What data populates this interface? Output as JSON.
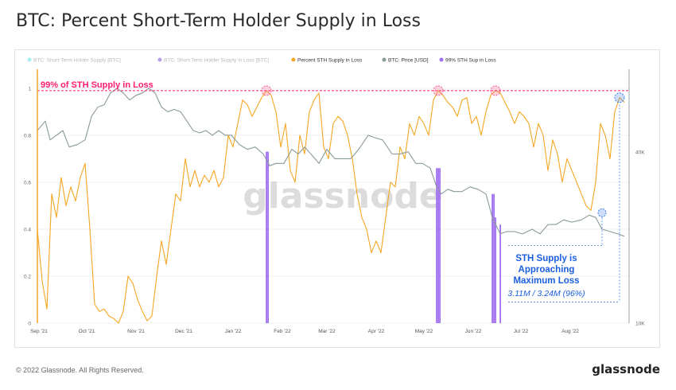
{
  "header": {
    "title": "BTC: Percent Short-Term Holder Supply in Loss"
  },
  "footer": {
    "copyright": "© 2022 Glassnode. All Rights Reserved.",
    "logo": "glassnode"
  },
  "watermark": "glassnode",
  "chart_data": {
    "type": "line",
    "legend": [
      {
        "name": "BTC: Short-Term Holder Supply [BTC]",
        "color": "#4dd9e8",
        "hidden": true
      },
      {
        "name": "BTC: Short-Term Holder Supply in Loss [BTC]",
        "color": "#6b3fd6",
        "hidden": true
      },
      {
        "name": "Percent STH Supply in Loss",
        "color": "#f5a623",
        "hidden": false
      },
      {
        "name": "BTC: Price [USD]",
        "color": "#8a9a9a",
        "hidden": false
      },
      {
        "name": "99% STH Sup in Loss",
        "color": "#a070f0",
        "hidden": false
      }
    ],
    "x_ticks": [
      "Sep '21",
      "Oct '21",
      "Nov '21",
      "Dec '21",
      "Jan '22",
      "Feb '22",
      "Mar '22",
      "Apr '22",
      "May '22",
      "Jun '22",
      "Jul '22",
      "Aug '22"
    ],
    "y_left_ticks": [
      "0",
      "0.2",
      "0.4",
      "0.6",
      "0.8",
      "1"
    ],
    "y_right_ticks": [
      "10K",
      "40K"
    ],
    "ylim_left": [
      0,
      1.02
    ],
    "xlim": [
      "2021-08-31",
      "2022-09-07"
    ],
    "threshold": {
      "value": 0.99,
      "label": "99% of STH Supply in Loss",
      "color": "#ff1c6e"
    },
    "annotation": {
      "lines": [
        "STH Supply is",
        "Approaching",
        "Maximum Loss"
      ],
      "sub": "3.11M / 3.24M (96%)",
      "color": "#1b5fe0"
    },
    "series": [
      {
        "name": "Percent STH Supply in Loss",
        "color": "#f5a623",
        "points": [
          [
            "2021-08-31",
            0.4
          ],
          [
            "2021-09-03",
            0.18
          ],
          [
            "2021-09-06",
            0.06
          ],
          [
            "2021-09-09",
            0.55
          ],
          [
            "2021-09-12",
            0.45
          ],
          [
            "2021-09-15",
            0.62
          ],
          [
            "2021-09-18",
            0.5
          ],
          [
            "2021-09-21",
            0.58
          ],
          [
            "2021-09-24",
            0.52
          ],
          [
            "2021-09-27",
            0.62
          ],
          [
            "2021-09-30",
            0.68
          ],
          [
            "2021-10-03",
            0.4
          ],
          [
            "2021-10-06",
            0.08
          ],
          [
            "2021-10-09",
            0.05
          ],
          [
            "2021-10-12",
            0.06
          ],
          [
            "2021-10-15",
            0.03
          ],
          [
            "2021-10-18",
            0.02
          ],
          [
            "2021-10-21",
            0.0
          ],
          [
            "2021-10-24",
            0.05
          ],
          [
            "2021-10-27",
            0.2
          ],
          [
            "2021-10-30",
            0.17
          ],
          [
            "2021-11-02",
            0.1
          ],
          [
            "2021-11-05",
            0.05
          ],
          [
            "2021-11-08",
            0.01
          ],
          [
            "2021-11-11",
            0.03
          ],
          [
            "2021-11-14",
            0.2
          ],
          [
            "2021-11-17",
            0.35
          ],
          [
            "2021-11-20",
            0.25
          ],
          [
            "2021-11-23",
            0.4
          ],
          [
            "2021-11-26",
            0.55
          ],
          [
            "2021-11-29",
            0.52
          ],
          [
            "2021-12-02",
            0.7
          ],
          [
            "2021-12-05",
            0.58
          ],
          [
            "2021-12-08",
            0.65
          ],
          [
            "2021-12-11",
            0.58
          ],
          [
            "2021-12-14",
            0.63
          ],
          [
            "2021-12-17",
            0.6
          ],
          [
            "2021-12-20",
            0.65
          ],
          [
            "2021-12-23",
            0.58
          ],
          [
            "2021-12-26",
            0.62
          ],
          [
            "2021-12-29",
            0.8
          ],
          [
            "2022-01-01",
            0.75
          ],
          [
            "2022-01-04",
            0.85
          ],
          [
            "2022-01-07",
            0.95
          ],
          [
            "2022-01-10",
            0.93
          ],
          [
            "2022-01-13",
            0.88
          ],
          [
            "2022-01-16",
            0.92
          ],
          [
            "2022-01-19",
            0.96
          ],
          [
            "2022-01-22",
            0.99
          ],
          [
            "2022-01-25",
            0.97
          ],
          [
            "2022-01-28",
            0.9
          ],
          [
            "2022-01-31",
            0.75
          ],
          [
            "2022-02-03",
            0.85
          ],
          [
            "2022-02-06",
            0.65
          ],
          [
            "2022-02-09",
            0.6
          ],
          [
            "2022-02-12",
            0.8
          ],
          [
            "2022-02-15",
            0.72
          ],
          [
            "2022-02-18",
            0.9
          ],
          [
            "2022-02-21",
            0.95
          ],
          [
            "2022-02-24",
            0.98
          ],
          [
            "2022-02-27",
            0.75
          ],
          [
            "2022-03-02",
            0.7
          ],
          [
            "2022-03-05",
            0.85
          ],
          [
            "2022-03-08",
            0.88
          ],
          [
            "2022-03-11",
            0.86
          ],
          [
            "2022-03-14",
            0.8
          ],
          [
            "2022-03-17",
            0.7
          ],
          [
            "2022-03-20",
            0.55
          ],
          [
            "2022-03-23",
            0.45
          ],
          [
            "2022-03-26",
            0.4
          ],
          [
            "2022-03-29",
            0.3
          ],
          [
            "2022-04-01",
            0.35
          ],
          [
            "2022-04-04",
            0.3
          ],
          [
            "2022-04-07",
            0.45
          ],
          [
            "2022-04-10",
            0.6
          ],
          [
            "2022-04-13",
            0.58
          ],
          [
            "2022-04-16",
            0.75
          ],
          [
            "2022-04-19",
            0.7
          ],
          [
            "2022-04-22",
            0.85
          ],
          [
            "2022-04-25",
            0.8
          ],
          [
            "2022-04-28",
            0.88
          ],
          [
            "2022-05-01",
            0.85
          ],
          [
            "2022-05-04",
            0.8
          ],
          [
            "2022-05-07",
            0.95
          ],
          [
            "2022-05-10",
            0.99
          ],
          [
            "2022-05-13",
            0.97
          ],
          [
            "2022-05-16",
            0.94
          ],
          [
            "2022-05-19",
            0.92
          ],
          [
            "2022-05-22",
            0.88
          ],
          [
            "2022-05-25",
            0.95
          ],
          [
            "2022-05-28",
            0.96
          ],
          [
            "2022-05-31",
            0.85
          ],
          [
            "2022-06-03",
            0.88
          ],
          [
            "2022-06-06",
            0.8
          ],
          [
            "2022-06-09",
            0.9
          ],
          [
            "2022-06-12",
            0.97
          ],
          [
            "2022-06-15",
            0.99
          ],
          [
            "2022-06-18",
            0.98
          ],
          [
            "2022-06-21",
            0.94
          ],
          [
            "2022-06-24",
            0.9
          ],
          [
            "2022-06-27",
            0.85
          ],
          [
            "2022-06-30",
            0.9
          ],
          [
            "2022-07-03",
            0.88
          ],
          [
            "2022-07-06",
            0.85
          ],
          [
            "2022-07-09",
            0.75
          ],
          [
            "2022-07-12",
            0.85
          ],
          [
            "2022-07-15",
            0.8
          ],
          [
            "2022-07-18",
            0.65
          ],
          [
            "2022-07-21",
            0.78
          ],
          [
            "2022-07-24",
            0.72
          ],
          [
            "2022-07-27",
            0.6
          ],
          [
            "2022-07-30",
            0.7
          ],
          [
            "2022-08-02",
            0.65
          ],
          [
            "2022-08-05",
            0.6
          ],
          [
            "2022-08-08",
            0.55
          ],
          [
            "2022-08-11",
            0.5
          ],
          [
            "2022-08-14",
            0.48
          ],
          [
            "2022-08-17",
            0.6
          ],
          [
            "2022-08-20",
            0.85
          ],
          [
            "2022-08-23",
            0.8
          ],
          [
            "2022-08-26",
            0.7
          ],
          [
            "2022-08-29",
            0.9
          ],
          [
            "2022-09-01",
            0.96
          ],
          [
            "2022-09-04",
            0.94
          ]
        ]
      },
      {
        "name": "BTC: Price [USD]",
        "color": "#8a9a9a",
        "points": [
          [
            "2021-08-31",
            0.82
          ],
          [
            "2021-09-05",
            0.86
          ],
          [
            "2021-09-08",
            0.78
          ],
          [
            "2021-09-12",
            0.8
          ],
          [
            "2021-09-16",
            0.82
          ],
          [
            "2021-09-20",
            0.75
          ],
          [
            "2021-09-25",
            0.76
          ],
          [
            "2021-09-30",
            0.78
          ],
          [
            "2021-10-04",
            0.88
          ],
          [
            "2021-10-08",
            0.92
          ],
          [
            "2021-10-12",
            0.93
          ],
          [
            "2021-10-16",
            0.98
          ],
          [
            "2021-10-20",
            1.0
          ],
          [
            "2021-10-24",
            0.98
          ],
          [
            "2021-10-28",
            0.95
          ],
          [
            "2021-11-01",
            0.97
          ],
          [
            "2021-11-05",
            0.98
          ],
          [
            "2021-11-09",
            1.0
          ],
          [
            "2021-11-13",
            0.98
          ],
          [
            "2021-11-17",
            0.92
          ],
          [
            "2021-11-21",
            0.9
          ],
          [
            "2021-11-25",
            0.91
          ],
          [
            "2021-11-29",
            0.9
          ],
          [
            "2021-12-03",
            0.86
          ],
          [
            "2021-12-07",
            0.82
          ],
          [
            "2021-12-11",
            0.81
          ],
          [
            "2021-12-15",
            0.82
          ],
          [
            "2021-12-19",
            0.8
          ],
          [
            "2021-12-23",
            0.82
          ],
          [
            "2021-12-27",
            0.8
          ],
          [
            "2021-12-31",
            0.8
          ],
          [
            "2022-01-05",
            0.76
          ],
          [
            "2022-01-10",
            0.74
          ],
          [
            "2022-01-15",
            0.75
          ],
          [
            "2022-01-20",
            0.72
          ],
          [
            "2022-01-24",
            0.67
          ],
          [
            "2022-01-28",
            0.68
          ],
          [
            "2022-02-02",
            0.68
          ],
          [
            "2022-02-07",
            0.74
          ],
          [
            "2022-02-11",
            0.72
          ],
          [
            "2022-02-15",
            0.75
          ],
          [
            "2022-02-19",
            0.72
          ],
          [
            "2022-02-24",
            0.68
          ],
          [
            "2022-03-01",
            0.74
          ],
          [
            "2022-03-06",
            0.7
          ],
          [
            "2022-03-11",
            0.7
          ],
          [
            "2022-03-16",
            0.7
          ],
          [
            "2022-03-21",
            0.74
          ],
          [
            "2022-03-27",
            0.8
          ],
          [
            "2022-03-31",
            0.79
          ],
          [
            "2022-04-05",
            0.78
          ],
          [
            "2022-04-11",
            0.72
          ],
          [
            "2022-04-16",
            0.72
          ],
          [
            "2022-04-21",
            0.73
          ],
          [
            "2022-04-26",
            0.68
          ],
          [
            "2022-04-30",
            0.68
          ],
          [
            "2022-05-05",
            0.66
          ],
          [
            "2022-05-09",
            0.58
          ],
          [
            "2022-05-12",
            0.55
          ],
          [
            "2022-05-16",
            0.57
          ],
          [
            "2022-05-20",
            0.56
          ],
          [
            "2022-05-25",
            0.56
          ],
          [
            "2022-05-30",
            0.58
          ],
          [
            "2022-06-04",
            0.57
          ],
          [
            "2022-06-09",
            0.55
          ],
          [
            "2022-06-13",
            0.45
          ],
          [
            "2022-06-18",
            0.38
          ],
          [
            "2022-06-22",
            0.39
          ],
          [
            "2022-06-27",
            0.39
          ],
          [
            "2022-07-02",
            0.38
          ],
          [
            "2022-07-08",
            0.4
          ],
          [
            "2022-07-13",
            0.38
          ],
          [
            "2022-07-18",
            0.42
          ],
          [
            "2022-07-23",
            0.42
          ],
          [
            "2022-07-28",
            0.44
          ],
          [
            "2022-08-02",
            0.43
          ],
          [
            "2022-08-08",
            0.44
          ],
          [
            "2022-08-13",
            0.46
          ],
          [
            "2022-08-17",
            0.45
          ],
          [
            "2022-08-21",
            0.4
          ],
          [
            "2022-08-26",
            0.39
          ],
          [
            "2022-08-31",
            0.38
          ],
          [
            "2022-09-04",
            0.37
          ]
        ]
      }
    ],
    "spikes": {
      "name": "99% STH Sup in Loss",
      "color": "#a070f0",
      "dates": [
        "2022-01-22",
        "2022-01-23",
        "2022-05-09",
        "2022-05-10",
        "2022-05-11",
        "2022-06-13",
        "2022-06-14",
        "2022-06-15",
        "2022-06-18"
      ]
    },
    "highlight_circles": [
      {
        "date": "2022-01-22",
        "value": 0.99,
        "color": "#ff5a8a"
      },
      {
        "date": "2022-05-10",
        "value": 0.99,
        "color": "#ff5a8a"
      },
      {
        "date": "2022-06-15",
        "value": 0.99,
        "color": "#ff5a8a"
      },
      {
        "date": "2022-09-01",
        "value": 0.96,
        "color": "#3b7de8"
      }
    ]
  }
}
